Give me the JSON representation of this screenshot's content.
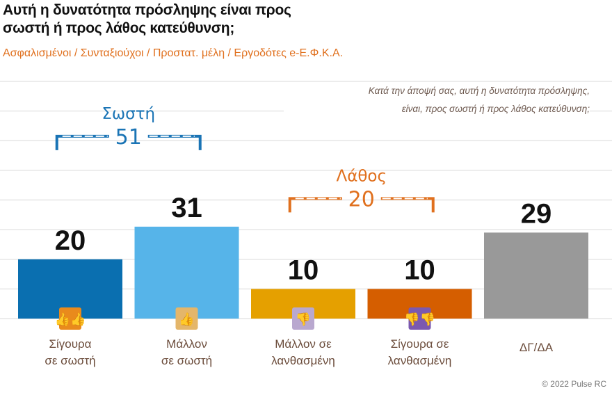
{
  "title_line1": "Αυτή η δυνατότητα πρόσληψης είναι προς",
  "title_line2": "σωστή ή προς λάθος κατεύθυνση;",
  "subtitle": "Ασφαλισμένοι / Συνταξιούχοι / Προστατ. μέλη / Εργοδότες e-Ε.Φ.Κ.Α.",
  "question_line1": "Κατά την άποψή σας, αυτή η δυνατότητα πρόσληψης,",
  "question_line2": "είναι, προς σωστή ή προς λάθος κατεύθυνση;",
  "copyright": "© 2022 Pulse RC",
  "chart_data": {
    "type": "bar",
    "categories": [
      [
        "Σίγουρα",
        "σε σωστή"
      ],
      [
        "Μάλλον",
        "σε σωστή"
      ],
      [
        "Μάλλον σε",
        "λανθασμένη"
      ],
      [
        "Σίγουρα σε",
        "λανθασμένη"
      ],
      [
        "ΔΓ/ΔΑ"
      ]
    ],
    "values": [
      20,
      31,
      10,
      10,
      29
    ],
    "colors": [
      "#0a6fb0",
      "#56b4e9",
      "#e5a000",
      "#d55e00",
      "#999999"
    ],
    "icons": [
      "two-thumbs-up-icon",
      "thumb-up-icon",
      "thumb-down-icon",
      "two-thumbs-down-icon",
      null
    ],
    "icon_colors": [
      "#e98a1c",
      "#e4b66a",
      "#b9a8cf",
      "#7b59b0",
      null
    ],
    "ylim": [
      0,
      80
    ],
    "grid": true,
    "groups": [
      {
        "label": "Σωστή",
        "total": "51",
        "color": "#1a74b5",
        "from": 0,
        "to": 1
      },
      {
        "label": "Λάθος",
        "total": "20",
        "color": "#e0701e",
        "from": 2,
        "to": 3
      }
    ]
  }
}
